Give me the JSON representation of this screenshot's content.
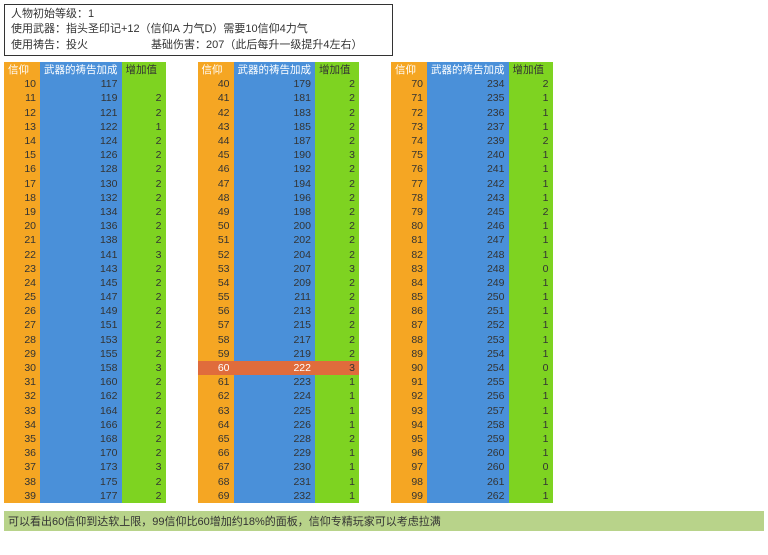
{
  "colors": {
    "orange": "#f5a623",
    "blue": "#4a90d9",
    "green": "#7ed321",
    "highlight": "#e06c3c",
    "note_bg": "#b8d38a",
    "white": "#ffffff",
    "text": "#333333"
  },
  "info": {
    "line1": "人物初始等级：1",
    "line2": "使用武器：指头圣印记+12（信仰A  力气D）需要10信仰4力气",
    "line3a": "使用祷告：投火",
    "line3b": "基础伤害：207（此后每升一级提升4左右）"
  },
  "headers": {
    "faith": "信仰",
    "bonus": "武器的祷告加成",
    "inc": "增加值"
  },
  "highlight_faith": 60,
  "note": "可以看出60信仰到达软上限，99信仰比60增加约18%的面板，信仰专精玩家可以考虑拉满",
  "tables": [
    [
      {
        "f": 10,
        "b": 117,
        "i": ""
      },
      {
        "f": 11,
        "b": 119,
        "i": 2
      },
      {
        "f": 12,
        "b": 121,
        "i": 2
      },
      {
        "f": 13,
        "b": 122,
        "i": 1
      },
      {
        "f": 14,
        "b": 124,
        "i": 2
      },
      {
        "f": 15,
        "b": 126,
        "i": 2
      },
      {
        "f": 16,
        "b": 128,
        "i": 2
      },
      {
        "f": 17,
        "b": 130,
        "i": 2
      },
      {
        "f": 18,
        "b": 132,
        "i": 2
      },
      {
        "f": 19,
        "b": 134,
        "i": 2
      },
      {
        "f": 20,
        "b": 136,
        "i": 2
      },
      {
        "f": 21,
        "b": 138,
        "i": 2
      },
      {
        "f": 22,
        "b": 141,
        "i": 3
      },
      {
        "f": 23,
        "b": 143,
        "i": 2
      },
      {
        "f": 24,
        "b": 145,
        "i": 2
      },
      {
        "f": 25,
        "b": 147,
        "i": 2
      },
      {
        "f": 26,
        "b": 149,
        "i": 2
      },
      {
        "f": 27,
        "b": 151,
        "i": 2
      },
      {
        "f": 28,
        "b": 153,
        "i": 2
      },
      {
        "f": 29,
        "b": 155,
        "i": 2
      },
      {
        "f": 30,
        "b": 158,
        "i": 3
      },
      {
        "f": 31,
        "b": 160,
        "i": 2
      },
      {
        "f": 32,
        "b": 162,
        "i": 2
      },
      {
        "f": 33,
        "b": 164,
        "i": 2
      },
      {
        "f": 34,
        "b": 166,
        "i": 2
      },
      {
        "f": 35,
        "b": 168,
        "i": 2
      },
      {
        "f": 36,
        "b": 170,
        "i": 2
      },
      {
        "f": 37,
        "b": 173,
        "i": 3
      },
      {
        "f": 38,
        "b": 175,
        "i": 2
      },
      {
        "f": 39,
        "b": 177,
        "i": 2
      }
    ],
    [
      {
        "f": 40,
        "b": 179,
        "i": 2
      },
      {
        "f": 41,
        "b": 181,
        "i": 2
      },
      {
        "f": 42,
        "b": 183,
        "i": 2
      },
      {
        "f": 43,
        "b": 185,
        "i": 2
      },
      {
        "f": 44,
        "b": 187,
        "i": 2
      },
      {
        "f": 45,
        "b": 190,
        "i": 3
      },
      {
        "f": 46,
        "b": 192,
        "i": 2
      },
      {
        "f": 47,
        "b": 194,
        "i": 2
      },
      {
        "f": 48,
        "b": 196,
        "i": 2
      },
      {
        "f": 49,
        "b": 198,
        "i": 2
      },
      {
        "f": 50,
        "b": 200,
        "i": 2
      },
      {
        "f": 51,
        "b": 202,
        "i": 2
      },
      {
        "f": 52,
        "b": 204,
        "i": 2
      },
      {
        "f": 53,
        "b": 207,
        "i": 3
      },
      {
        "f": 54,
        "b": 209,
        "i": 2
      },
      {
        "f": 55,
        "b": 211,
        "i": 2
      },
      {
        "f": 56,
        "b": 213,
        "i": 2
      },
      {
        "f": 57,
        "b": 215,
        "i": 2
      },
      {
        "f": 58,
        "b": 217,
        "i": 2
      },
      {
        "f": 59,
        "b": 219,
        "i": 2
      },
      {
        "f": 60,
        "b": 222,
        "i": 3
      },
      {
        "f": 61,
        "b": 223,
        "i": 1
      },
      {
        "f": 62,
        "b": 224,
        "i": 1
      },
      {
        "f": 63,
        "b": 225,
        "i": 1
      },
      {
        "f": 64,
        "b": 226,
        "i": 1
      },
      {
        "f": 65,
        "b": 228,
        "i": 2
      },
      {
        "f": 66,
        "b": 229,
        "i": 1
      },
      {
        "f": 67,
        "b": 230,
        "i": 1
      },
      {
        "f": 68,
        "b": 231,
        "i": 1
      },
      {
        "f": 69,
        "b": 232,
        "i": 1
      }
    ],
    [
      {
        "f": 70,
        "b": 234,
        "i": 2
      },
      {
        "f": 71,
        "b": 235,
        "i": 1
      },
      {
        "f": 72,
        "b": 236,
        "i": 1
      },
      {
        "f": 73,
        "b": 237,
        "i": 1
      },
      {
        "f": 74,
        "b": 239,
        "i": 2
      },
      {
        "f": 75,
        "b": 240,
        "i": 1
      },
      {
        "f": 76,
        "b": 241,
        "i": 1
      },
      {
        "f": 77,
        "b": 242,
        "i": 1
      },
      {
        "f": 78,
        "b": 243,
        "i": 1
      },
      {
        "f": 79,
        "b": 245,
        "i": 2
      },
      {
        "f": 80,
        "b": 246,
        "i": 1
      },
      {
        "f": 81,
        "b": 247,
        "i": 1
      },
      {
        "f": 82,
        "b": 248,
        "i": 1
      },
      {
        "f": 83,
        "b": 248,
        "i": 0
      },
      {
        "f": 84,
        "b": 249,
        "i": 1
      },
      {
        "f": 85,
        "b": 250,
        "i": 1
      },
      {
        "f": 86,
        "b": 251,
        "i": 1
      },
      {
        "f": 87,
        "b": 252,
        "i": 1
      },
      {
        "f": 88,
        "b": 253,
        "i": 1
      },
      {
        "f": 89,
        "b": 254,
        "i": 1
      },
      {
        "f": 90,
        "b": 254,
        "i": 0
      },
      {
        "f": 91,
        "b": 255,
        "i": 1
      },
      {
        "f": 92,
        "b": 256,
        "i": 1
      },
      {
        "f": 93,
        "b": 257,
        "i": 1
      },
      {
        "f": 94,
        "b": 258,
        "i": 1
      },
      {
        "f": 95,
        "b": 259,
        "i": 1
      },
      {
        "f": 96,
        "b": 260,
        "i": 1
      },
      {
        "f": 97,
        "b": 260,
        "i": 0
      },
      {
        "f": 98,
        "b": 261,
        "i": 1
      },
      {
        "f": 99,
        "b": 262,
        "i": 1
      }
    ]
  ]
}
